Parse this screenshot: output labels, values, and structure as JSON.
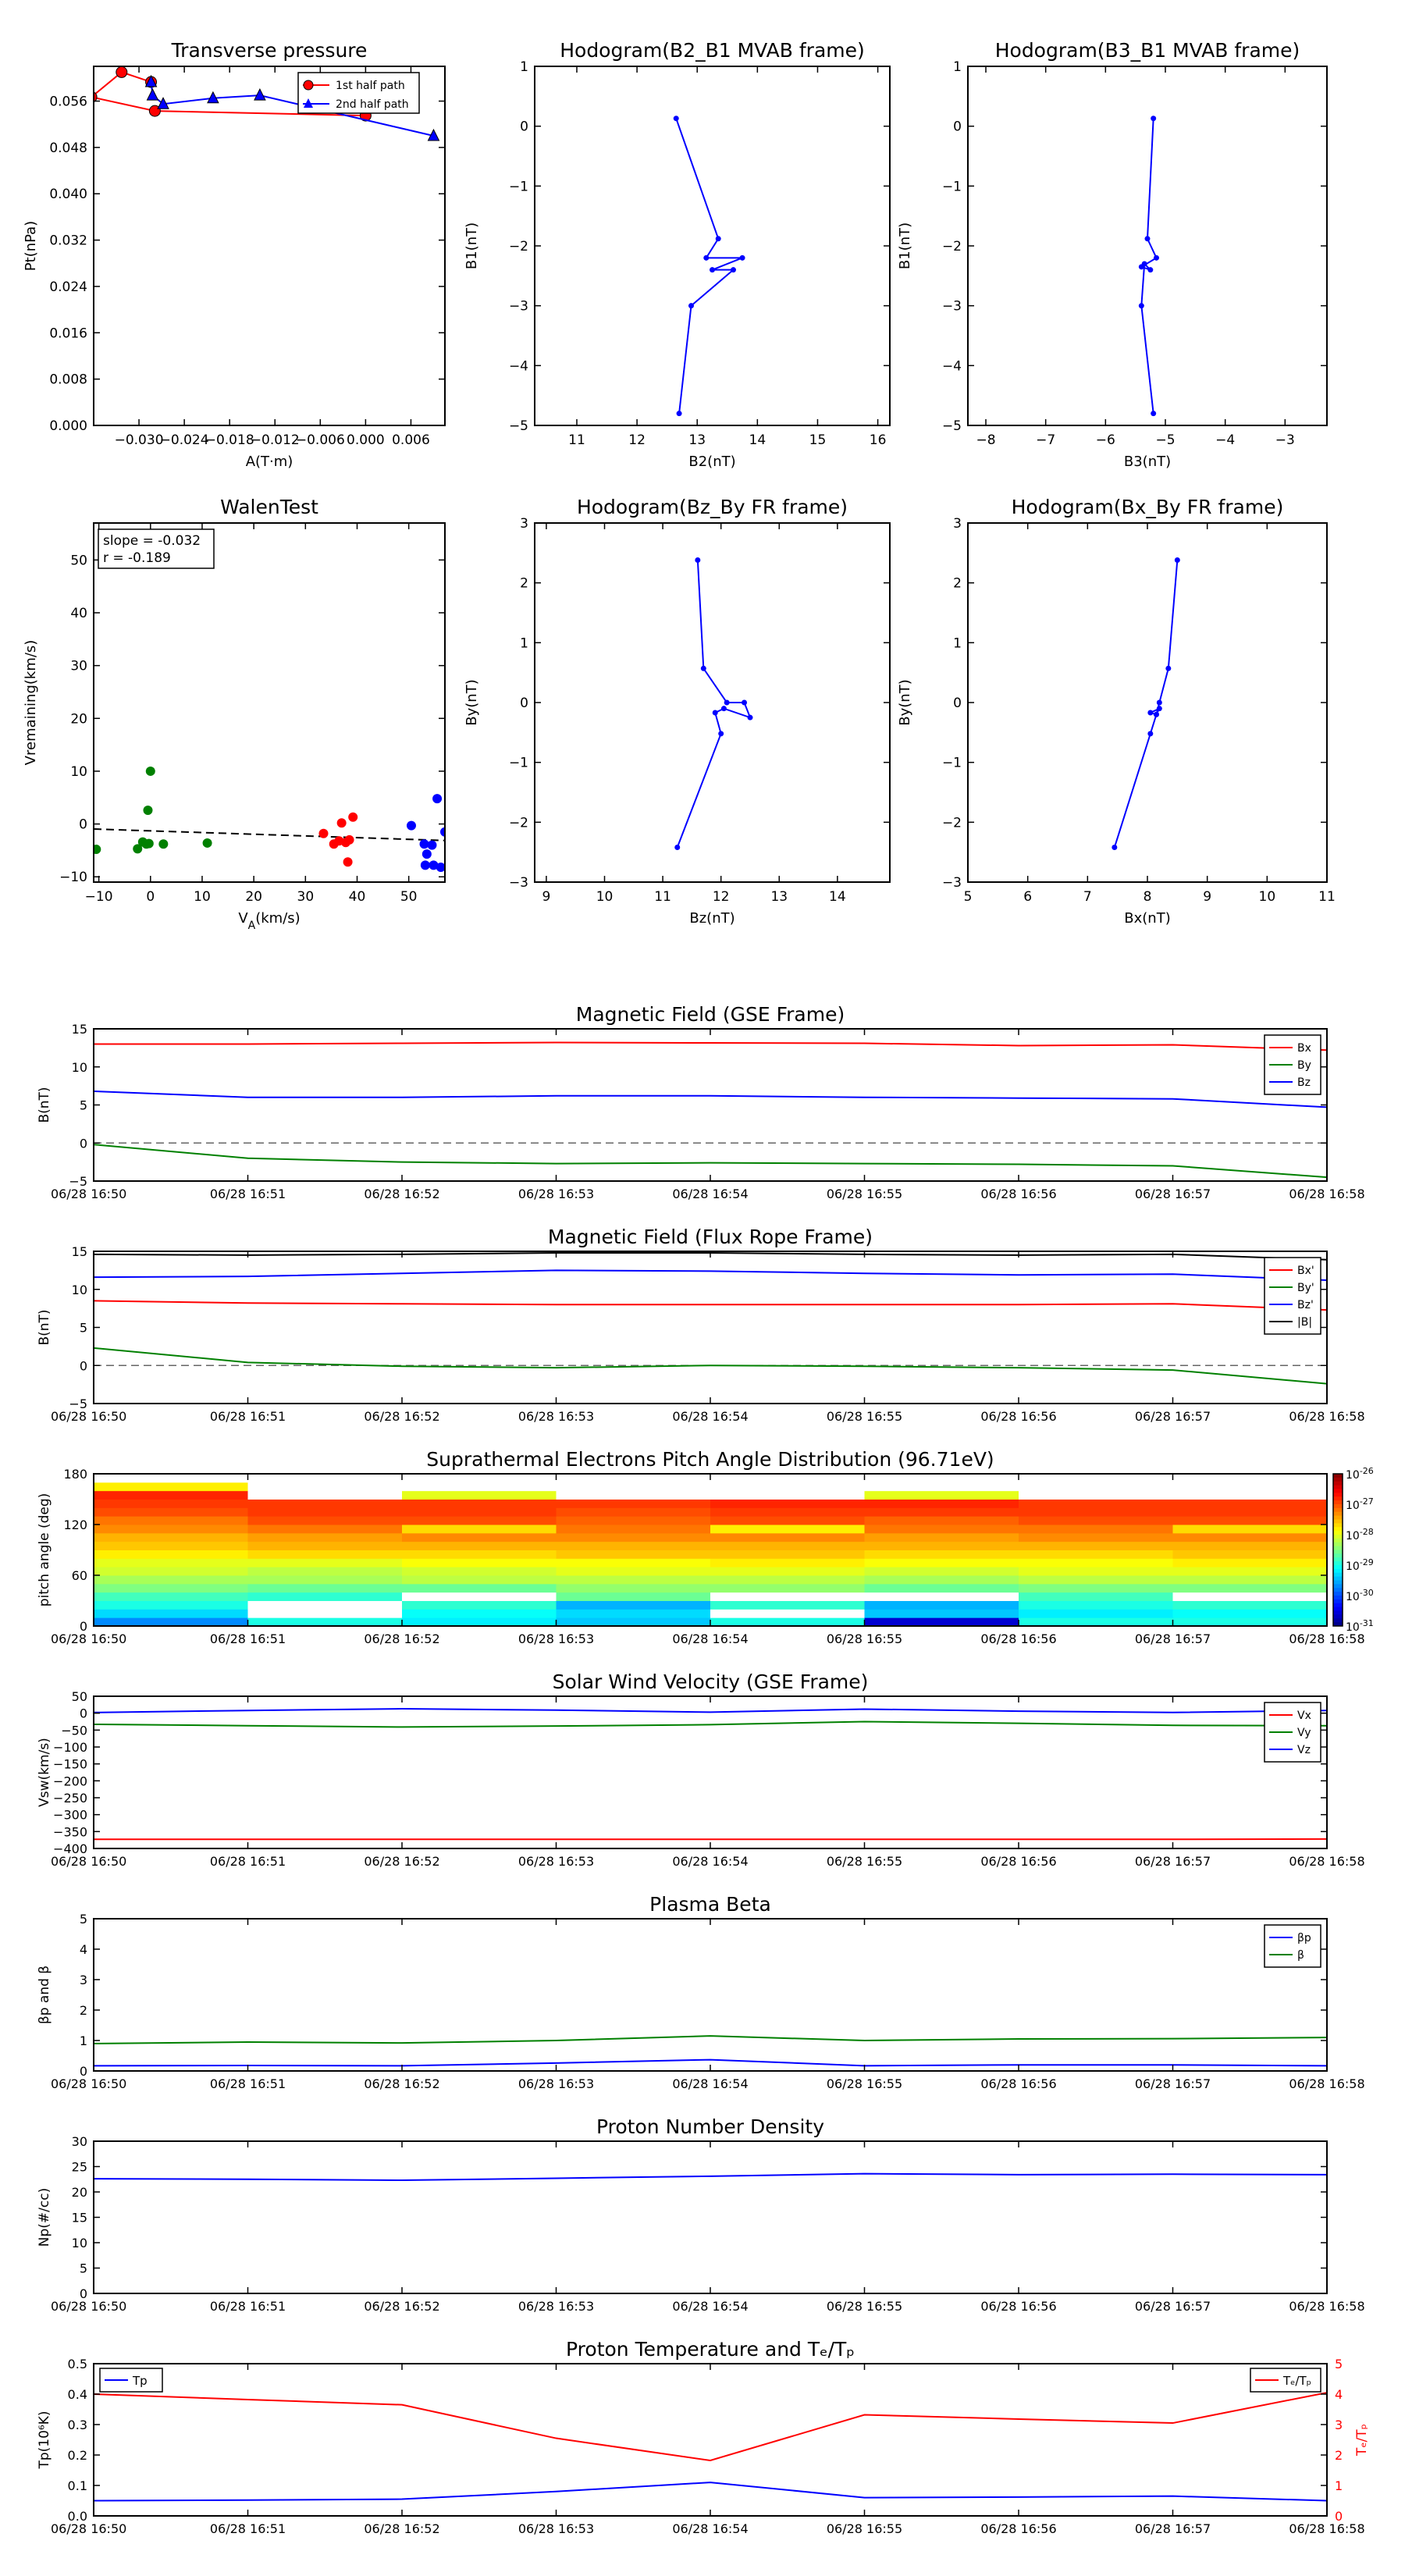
{
  "chart_data": [
    {
      "id": "transverse",
      "type": "scatter",
      "title": "Transverse pressure",
      "xlabel": "A(T·m)",
      "ylabel": "Pt(nPa)",
      "xlim": [
        -0.036,
        0.0105
      ],
      "ylim": [
        0,
        0.062
      ],
      "xticks": [
        -0.03,
        -0.024,
        -0.018,
        -0.012,
        -0.006,
        0.0,
        0.006
      ],
      "xticklabels": [
        "−0.030",
        "−0.024",
        "−0.018",
        "−0.012",
        "−0.006",
        "0.000",
        "0.006"
      ],
      "yticks": [
        0,
        0.008,
        0.016,
        0.024,
        0.032,
        0.04,
        0.048,
        0.056
      ],
      "yticklabels": [
        "0.000",
        "0.008",
        "0.016",
        "0.024",
        "0.032",
        "0.040",
        "0.048",
        "0.056"
      ],
      "legend_position": "top-right",
      "series": [
        {
          "name": "1st half path",
          "color": "#ff0000",
          "marker": "circle",
          "x": [
            0.0,
            -0.0279,
            -0.0363,
            -0.0323,
            -0.0284
          ],
          "y": [
            0.0535,
            0.0543,
            0.0567,
            0.061,
            0.0593
          ]
        },
        {
          "name": "2nd half path",
          "color": "#0000ff",
          "marker": "triangle",
          "x": [
            -0.0284,
            -0.0282,
            -0.0268,
            -0.0202,
            -0.014,
            0.009
          ],
          "y": [
            0.0593,
            0.057,
            0.0555,
            0.0565,
            0.057,
            0.05
          ]
        }
      ]
    },
    {
      "id": "hodo-b2b1",
      "type": "line",
      "title": "Hodogram(B2_B1 MVAB frame)",
      "xlabel": "B2(nT)",
      "ylabel": "B1(nT)",
      "xlim": [
        10.3,
        16.2
      ],
      "ylim": [
        -5,
        1
      ],
      "xticks": [
        11,
        12,
        13,
        14,
        15,
        16
      ],
      "xticklabels": [
        "11",
        "12",
        "13",
        "14",
        "15",
        "16"
      ],
      "yticks": [
        1,
        0,
        -1,
        -2,
        -3,
        -4,
        -5
      ],
      "yticklabels": [
        "1",
        "0",
        "−1",
        "−2",
        "−3",
        "−4",
        "−5"
      ],
      "color": "#0000ff",
      "x": [
        12.65,
        13.35,
        13.15,
        13.75,
        13.25,
        13.6,
        12.9,
        12.7
      ],
      "y": [
        0.13,
        -1.88,
        -2.2,
        -2.2,
        -2.4,
        -2.4,
        -3.0,
        -4.8
      ]
    },
    {
      "id": "hodo-b3b1",
      "type": "line",
      "title": "Hodogram(B3_B1 MVAB frame)",
      "xlabel": "B3(nT)",
      "ylabel": "B1(nT)",
      "xlim": [
        -8.3,
        -2.3
      ],
      "ylim": [
        -5,
        1
      ],
      "xticks": [
        -8,
        -7,
        -6,
        -5,
        -4,
        -3
      ],
      "xticklabels": [
        "−8",
        "−7",
        "−6",
        "−5",
        "−4",
        "−3"
      ],
      "yticks": [
        1,
        0,
        -1,
        -2,
        -3,
        -4,
        -5
      ],
      "yticklabels": [
        "1",
        "0",
        "−1",
        "−2",
        "−3",
        "−4",
        "−5"
      ],
      "color": "#0000ff",
      "x": [
        -5.2,
        -5.3,
        -5.15,
        -5.4,
        -5.25,
        -5.35,
        -5.4,
        -5.2
      ],
      "y": [
        0.13,
        -1.88,
        -2.2,
        -2.35,
        -2.4,
        -2.3,
        -3.0,
        -4.8
      ]
    },
    {
      "id": "walen",
      "type": "scatter",
      "title": "WalenTest",
      "xlabel_html": "V<tspan baseline-shift=\"sub\" font-size=\"14\">A</tspan>(km/s)",
      "xlabel": "V A(km/s)",
      "ylabel": "Vremaining(km/s)",
      "xlim": [
        -11,
        57
      ],
      "ylim": [
        -11,
        57
      ],
      "xticks": [
        -10,
        0,
        10,
        20,
        30,
        40,
        50
      ],
      "xticklabels": [
        "−10",
        "0",
        "10",
        "20",
        "30",
        "40",
        "50"
      ],
      "yticks": [
        -10,
        0,
        10,
        20,
        30,
        40,
        50
      ],
      "yticklabels": [
        "−10",
        "0",
        "10",
        "20",
        "30",
        "40",
        "50"
      ],
      "annotation_lines": [
        "slope = -0.032",
        "r = -0.189"
      ],
      "fit": {
        "slope": -0.032,
        "intercept": -1.3
      },
      "series": [
        {
          "color": "#008000",
          "x": [
            -10.5,
            -2.5,
            -1.5,
            -0.8,
            -0.3,
            -0.5,
            0.0,
            2.5,
            11.0
          ],
          "y": [
            -4.8,
            -4.7,
            -3.4,
            -3.8,
            -3.7,
            2.6,
            10.0,
            -3.8,
            -3.6
          ]
        },
        {
          "color": "#ff0000",
          "x": [
            33.5,
            35.5,
            36.5,
            37.0,
            37.8,
            38.5,
            38.2,
            39.2
          ],
          "y": [
            -1.8,
            -3.8,
            -3.2,
            0.2,
            -3.5,
            -3.0,
            -7.2,
            1.3
          ]
        },
        {
          "color": "#0000ff",
          "x": [
            50.5,
            53.0,
            53.5,
            54.5,
            53.2,
            54.8,
            56.2,
            55.5,
            57.0
          ],
          "y": [
            -0.3,
            -3.8,
            -5.7,
            -4.0,
            -7.8,
            -7.8,
            -8.2,
            4.8,
            -1.5
          ]
        }
      ]
    },
    {
      "id": "hodo-bzby",
      "type": "line",
      "title": "Hodogram(Bz_By FR frame)",
      "xlabel": "Bz(nT)",
      "ylabel": "By(nT)",
      "xlim": [
        8.8,
        14.9
      ],
      "ylim": [
        -3,
        3
      ],
      "xticks": [
        9,
        10,
        11,
        12,
        13,
        14
      ],
      "xticklabels": [
        "9",
        "10",
        "11",
        "12",
        "13",
        "14"
      ],
      "yticks": [
        3,
        2,
        1,
        0,
        -1,
        -2,
        -3
      ],
      "yticklabels": [
        "3",
        "2",
        "1",
        "0",
        "−1",
        "−2",
        "−3"
      ],
      "color": "#0000ff",
      "x": [
        11.6,
        11.7,
        12.1,
        12.4,
        12.5,
        12.05,
        11.9,
        12.0,
        11.25
      ],
      "y": [
        2.38,
        0.57,
        0.0,
        0.0,
        -0.25,
        -0.1,
        -0.17,
        -0.52,
        -2.42
      ]
    },
    {
      "id": "hodo-bxby",
      "type": "line",
      "title": "Hodogram(Bx_By FR frame)",
      "xlabel": "Bx(nT)",
      "ylabel": "By(nT)",
      "xlim": [
        5,
        11
      ],
      "ylim": [
        -3,
        3
      ],
      "xticks": [
        5,
        6,
        7,
        8,
        9,
        10,
        11
      ],
      "xticklabels": [
        "5",
        "6",
        "7",
        "8",
        "9",
        "10",
        "11"
      ],
      "yticks": [
        3,
        2,
        1,
        0,
        -1,
        -2,
        -3
      ],
      "yticklabels": [
        "3",
        "2",
        "1",
        "0",
        "−1",
        "−2",
        "−3"
      ],
      "color": "#0000ff",
      "x": [
        8.5,
        8.35,
        8.2,
        8.15,
        8.2,
        8.05,
        8.15,
        8.05,
        7.45
      ],
      "y": [
        2.38,
        0.57,
        0.0,
        -0.2,
        -0.1,
        -0.17,
        -0.2,
        -0.52,
        -2.42
      ]
    },
    {
      "id": "bgse",
      "type": "line",
      "title": "Magnetic Field (GSE Frame)",
      "ylabel": "B(nT)",
      "ylim": [
        -5,
        15
      ],
      "yticks": [
        -5,
        0,
        5,
        10,
        15
      ],
      "yticklabels": [
        "−5",
        "0",
        "5",
        "10",
        "15"
      ],
      "zero_line": true,
      "legend_position": "top-right",
      "series": [
        {
          "name": "Bx",
          "color": "#ff0000",
          "values": [
            13.0,
            13.0,
            13.1,
            13.2,
            13.15,
            13.1,
            12.8,
            12.9,
            12.2
          ]
        },
        {
          "name": "By",
          "color": "#008000",
          "values": [
            -0.2,
            -2.0,
            -2.5,
            -2.7,
            -2.6,
            -2.7,
            -2.8,
            -3.0,
            -4.5
          ]
        },
        {
          "name": "Bz",
          "color": "#0000ff",
          "values": [
            6.8,
            6.0,
            6.0,
            6.2,
            6.2,
            6.0,
            5.9,
            5.8,
            4.7
          ]
        }
      ]
    },
    {
      "id": "bfr",
      "type": "line",
      "title": "Magnetic Field (Flux Rope Frame)",
      "ylabel": "B(nT)",
      "ylim": [
        -5,
        15
      ],
      "yticks": [
        -5,
        0,
        5,
        10,
        15
      ],
      "yticklabels": [
        "−5",
        "0",
        "5",
        "10",
        "15"
      ],
      "zero_line": true,
      "legend_position": "top-right",
      "series": [
        {
          "name": "Bx'",
          "color": "#ff0000",
          "values": [
            8.5,
            8.2,
            8.1,
            8.0,
            8.0,
            8.0,
            8.0,
            8.1,
            7.3
          ]
        },
        {
          "name": "By'",
          "color": "#008000",
          "values": [
            2.3,
            0.4,
            -0.1,
            -0.3,
            0.0,
            -0.1,
            -0.3,
            -0.6,
            -2.4
          ]
        },
        {
          "name": "Bz'",
          "color": "#0000ff",
          "values": [
            11.6,
            11.7,
            12.1,
            12.5,
            12.4,
            12.1,
            11.9,
            12.0,
            11.2
          ]
        },
        {
          "name": "|B|",
          "color": "#000000",
          "values": [
            14.6,
            14.5,
            14.6,
            14.8,
            14.8,
            14.6,
            14.5,
            14.6,
            13.9
          ]
        }
      ]
    },
    {
      "id": "pad",
      "type": "heatmap",
      "title": "Suprathermal Electrons Pitch Angle Distribution (96.71eV)",
      "ylabel": "pitch angle (deg)",
      "ylim": [
        0,
        180
      ],
      "yticks": [
        0,
        60,
        120,
        180
      ],
      "yticklabels": [
        "0",
        "60",
        "120",
        "180"
      ],
      "colorbar_labels": [
        "10-26",
        "10-27",
        "10-28",
        "10-29",
        "10-30",
        "10-31"
      ],
      "colorbar_range": [
        -31,
        -26
      ],
      "bin_edges": [
        0,
        10,
        20,
        30,
        40,
        50,
        60,
        70,
        80,
        90,
        100,
        110,
        120,
        130,
        140,
        150,
        160,
        170,
        180
      ],
      "columns": [
        [
          -29.7,
          -29.3,
          -29.0,
          -28.8,
          -28.5,
          -28.3,
          -28.1,
          -28.0,
          -27.8,
          -27.6,
          -27.5,
          -27.3,
          -27.2,
          -27.0,
          -26.9,
          -26.8,
          -27.8,
          -31.5
        ],
        [
          -29.0,
          -31.5,
          -31.5,
          -28.9,
          -28.6,
          -28.3,
          -28.2,
          -28.0,
          -27.7,
          -27.5,
          -27.4,
          -27.2,
          -27.0,
          -26.9,
          -26.9,
          -31.5,
          -31.5,
          -31.5
        ],
        [
          -29.2,
          -29.1,
          -28.9,
          -31.5,
          -28.6,
          -28.2,
          -28.1,
          -27.9,
          -27.7,
          -27.5,
          -27.3,
          -27.7,
          -27.0,
          -26.9,
          -26.9,
          -28.0,
          -31.5,
          -31.5
        ],
        [
          -29.4,
          -29.3,
          -29.5,
          -28.6,
          -28.4,
          -28.2,
          -28.0,
          -27.9,
          -27.6,
          -27.5,
          -27.3,
          -27.2,
          -27.1,
          -27.0,
          -26.9,
          -31.5,
          -31.5,
          -31.5
        ],
        [
          -29.0,
          -31.5,
          -28.9,
          -31.5,
          -28.4,
          -28.2,
          -28.0,
          -27.8,
          -27.6,
          -27.5,
          -27.3,
          -27.8,
          -27.0,
          -26.9,
          -26.8,
          -31.5,
          -31.5,
          -31.5
        ],
        [
          -30.6,
          -29.4,
          -29.5,
          -31.5,
          -28.6,
          -28.3,
          -28.1,
          -27.9,
          -27.7,
          -27.5,
          -27.4,
          -27.2,
          -27.1,
          -26.9,
          -26.8,
          -28.0,
          -31.5,
          -31.5
        ],
        [
          -29.0,
          -29.2,
          -29.0,
          -28.8,
          -28.5,
          -28.2,
          -28.0,
          -27.9,
          -27.7,
          -27.5,
          -27.3,
          -27.2,
          -27.0,
          -26.9,
          -26.9,
          -31.5,
          -31.5,
          -31.5
        ],
        [
          -29.0,
          -29.1,
          -28.9,
          -31.5,
          -28.5,
          -28.2,
          -28.0,
          -27.8,
          -27.6,
          -27.5,
          -27.3,
          -27.7,
          -27.0,
          -26.9,
          -26.9,
          -31.5,
          -31.5,
          -31.5
        ]
      ]
    },
    {
      "id": "vsw",
      "type": "line",
      "title": "Solar Wind Velocity (GSE Frame)",
      "ylabel": "Vsw(km/s)",
      "ylim": [
        -400,
        50
      ],
      "yticks": [
        50,
        0,
        -50,
        -100,
        -150,
        -200,
        -250,
        -300,
        -350,
        -400
      ],
      "yticklabels": [
        "50",
        "0",
        "−50",
        "−100",
        "−150",
        "−200",
        "−250",
        "−300",
        "−350",
        "−400"
      ],
      "legend_position": "top-right",
      "series": [
        {
          "name": "Vx",
          "color": "#ff0000",
          "values": [
            -373,
            -373,
            -373,
            -373,
            -373,
            -373,
            -373,
            -373,
            -372
          ]
        },
        {
          "name": "Vy",
          "color": "#008000",
          "values": [
            -33,
            -37,
            -41,
            -38,
            -34,
            -25,
            -30,
            -36,
            -37
          ]
        },
        {
          "name": "Vz",
          "color": "#0000ff",
          "values": [
            2,
            8,
            13,
            9,
            3,
            12,
            6,
            2,
            8
          ]
        }
      ]
    },
    {
      "id": "beta",
      "type": "line",
      "title": "Plasma Beta",
      "ylabel": "βp and β",
      "ylim": [
        0,
        5
      ],
      "yticks": [
        0,
        1,
        2,
        3,
        4,
        5
      ],
      "yticklabels": [
        "0",
        "1",
        "2",
        "3",
        "4",
        "5"
      ],
      "legend_position": "top-right",
      "series": [
        {
          "name": "βp",
          "color": "#0000ff",
          "values": [
            0.17,
            0.18,
            0.17,
            0.26,
            0.37,
            0.17,
            0.2,
            0.2,
            0.17
          ]
        },
        {
          "name": "β",
          "color": "#008000",
          "values": [
            0.9,
            0.95,
            0.92,
            1.0,
            1.15,
            1.0,
            1.05,
            1.06,
            1.1
          ]
        }
      ]
    },
    {
      "id": "np",
      "type": "line",
      "title": "Proton Number Density",
      "ylabel": "Np(#/cc)",
      "ylim": [
        0,
        30
      ],
      "yticks": [
        0,
        5,
        10,
        15,
        20,
        25,
        30
      ],
      "yticklabels": [
        "0",
        "5",
        "10",
        "15",
        "20",
        "25",
        "30"
      ],
      "series": [
        {
          "name": "Np",
          "color": "#0000ff",
          "values": [
            22.6,
            22.5,
            22.3,
            22.7,
            23.1,
            23.6,
            23.4,
            23.5,
            23.4
          ]
        }
      ]
    },
    {
      "id": "tp",
      "type": "line",
      "title": "Proton Temperature and Tₑ/Tₚ",
      "ylabel": "Tp(10⁶K)",
      "ylabel_right": "Tₑ/Tₚ",
      "ylim": [
        0,
        0.5
      ],
      "yticks": [
        0,
        0.1,
        0.2,
        0.3,
        0.4,
        0.5
      ],
      "yticklabels": [
        "0.0",
        "0.1",
        "0.2",
        "0.3",
        "0.4",
        "0.5"
      ],
      "ylim_right": [
        0,
        5
      ],
      "yticks_right": [
        0,
        1,
        2,
        3,
        4,
        5
      ],
      "yticklabels_right": [
        "0",
        "1",
        "2",
        "3",
        "4",
        "5"
      ],
      "legend_left": "Tp",
      "legend_right": "Tₑ/Tₚ",
      "series": [
        {
          "name": "Tp",
          "color": "#0000ff",
          "axis": "left",
          "values": [
            0.05,
            0.052,
            0.055,
            0.08,
            0.11,
            0.06,
            0.062,
            0.065,
            0.05
          ]
        },
        {
          "name": "Tₑ/Tₚ",
          "color": "#ff0000",
          "axis": "right",
          "values": [
            4.0,
            3.82,
            3.65,
            2.55,
            1.82,
            3.32,
            3.18,
            3.05,
            4.05
          ]
        }
      ]
    }
  ],
  "time_axis": {
    "ticklabels": [
      "06/28 16:50",
      "06/28 16:51",
      "06/28 16:52",
      "06/28 16:53",
      "06/28 16:54",
      "06/28 16:55",
      "06/28 16:56",
      "06/28 16:57",
      "06/28 16:58"
    ]
  }
}
